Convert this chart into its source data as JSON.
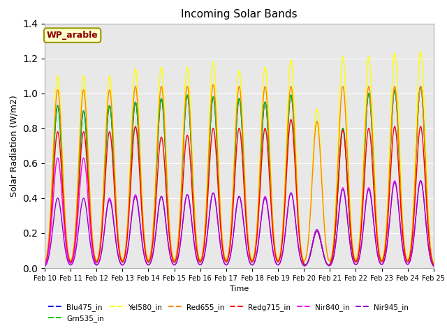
{
  "title": "Incoming Solar Bands",
  "xlabel": "Time",
  "ylabel": "Solar Radiation (W/m2)",
  "annotation": "WP_arable",
  "ylim": [
    0,
    1.4
  ],
  "background_color": "#e8e8e8",
  "series_order": [
    "Blu475_in",
    "Grn535_in",
    "Yel580_in",
    "Red655_in",
    "Redg715_in",
    "Nir840_in",
    "Nir945_in"
  ],
  "series_colors": {
    "Blu475_in": "#0000ee",
    "Grn535_in": "#00cc00",
    "Yel580_in": "#ffff00",
    "Red655_in": "#ff8800",
    "Redg715_in": "#ff0000",
    "Nir840_in": "#ff00ff",
    "Nir945_in": "#9900cc"
  },
  "n_days": 15,
  "start_day": 10,
  "peaks": {
    "Blu475_in": [
      0.93,
      0.9,
      0.93,
      0.95,
      0.97,
      0.99,
      0.98,
      0.97,
      0.95,
      0.99,
      0.22,
      0.8,
      1.0,
      1.02,
      1.04
    ],
    "Grn535_in": [
      0.93,
      0.9,
      0.93,
      0.95,
      0.97,
      0.99,
      0.98,
      0.97,
      0.95,
      0.99,
      0.22,
      0.8,
      1.0,
      1.02,
      1.04
    ],
    "Yel580_in": [
      1.1,
      1.1,
      1.1,
      1.14,
      1.15,
      1.15,
      1.18,
      1.13,
      1.15,
      1.19,
      0.91,
      1.21,
      1.21,
      1.23,
      1.24
    ],
    "Red655_in": [
      1.02,
      1.02,
      1.02,
      1.04,
      1.04,
      1.04,
      1.05,
      1.04,
      1.04,
      1.04,
      0.84,
      1.04,
      1.04,
      1.04,
      1.04
    ],
    "Redg715_in": [
      0.78,
      0.78,
      0.78,
      0.81,
      0.75,
      0.76,
      0.8,
      0.8,
      0.8,
      0.85,
      0.21,
      0.79,
      0.8,
      0.81,
      0.81
    ],
    "Nir840_in": [
      0.63,
      0.63,
      0.4,
      0.42,
      0.41,
      0.42,
      0.43,
      0.41,
      0.41,
      0.43,
      0.22,
      0.46,
      0.46,
      0.5,
      0.5
    ],
    "Nir945_in": [
      0.4,
      0.4,
      0.39,
      0.41,
      0.41,
      0.42,
      0.43,
      0.41,
      0.4,
      0.43,
      0.21,
      0.45,
      0.45,
      0.49,
      0.5
    ]
  },
  "sigma": 0.18,
  "legend_ncol": 6,
  "legend_fontsize": 7.5,
  "title_fontsize": 11,
  "ylabel_fontsize": 9,
  "xlabel_fontsize": 8,
  "tick_fontsize": 7
}
